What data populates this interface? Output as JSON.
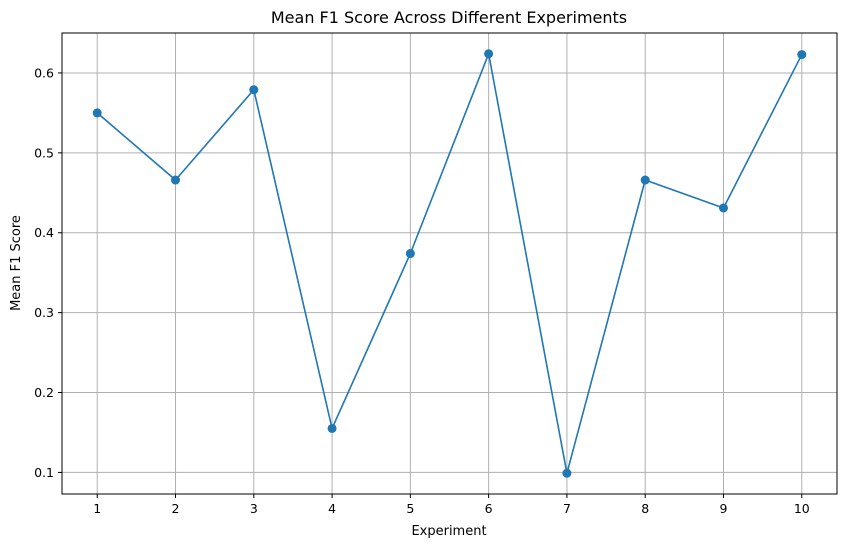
{
  "chart_data": {
    "type": "line",
    "title": "Mean F1 Score Across Different Experiments",
    "xlabel": "Experiment",
    "ylabel": "Mean F1 Score",
    "x": [
      1,
      2,
      3,
      4,
      5,
      6,
      7,
      8,
      9,
      10
    ],
    "series": [
      {
        "values": [
          0.55,
          0.466,
          0.579,
          0.155,
          0.374,
          0.624,
          0.099,
          0.466,
          0.431,
          0.623
        ],
        "color": "#1f77b4",
        "marker": "circle"
      }
    ],
    "xlim": [
      0.55,
      10.45
    ],
    "ylim": [
      0.073,
      0.65
    ],
    "xticks": [
      "1",
      "2",
      "3",
      "4",
      "5",
      "6",
      "7",
      "8",
      "9",
      "10"
    ],
    "yticks": [
      0.1,
      0.2,
      0.3,
      0.4,
      0.5,
      0.6
    ],
    "ytick_labels": [
      "0.1",
      "0.2",
      "0.3",
      "0.4",
      "0.5",
      "0.6"
    ],
    "grid": true
  }
}
